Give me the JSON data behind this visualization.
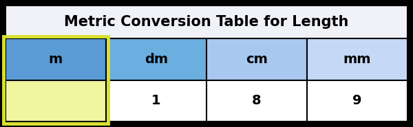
{
  "title": "Metric Conversion Table for Length",
  "title_fontsize": 15,
  "title_fontweight": "bold",
  "columns": [
    "m",
    "dm",
    "cm",
    "mm"
  ],
  "values": [
    "",
    "1",
    "8",
    "9"
  ],
  "header_colors": [
    "#5b9bd5",
    "#6baee0",
    "#a8c8f0",
    "#c5d8f5"
  ],
  "value_row_colors": [
    "#f0f5a0",
    "#ffffff",
    "#ffffff",
    "#ffffff"
  ],
  "title_bg_color": "#f0f2f8",
  "highlight_border_color": "#d8e030",
  "grid_color": "#000000",
  "text_color": "#000000",
  "outer_bg_color": "#000000",
  "table_bg_color": "#ffffff",
  "cell_text_fontsize": 14
}
